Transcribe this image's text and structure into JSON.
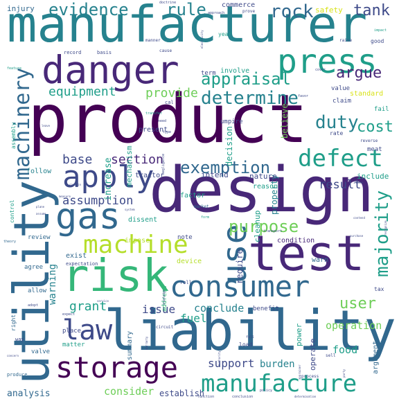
{
  "palette": {
    "dark_purple": "#440154",
    "indigo": "#482878",
    "blue": "#3e4a89",
    "steel_blue": "#31688e",
    "teal_blue": "#26828e",
    "teal": "#1f9e89",
    "green": "#35b779",
    "light_green": "#6ece58",
    "lime": "#b5de2b",
    "yellow": "#d8e219"
  },
  "words": [
    {
      "text": "product",
      "weight": 1.0,
      "color": "dark_purple",
      "orientation": "horizontal"
    },
    {
      "text": "manufacturer",
      "weight": 0.88,
      "color": "teal_blue",
      "orientation": "horizontal"
    },
    {
      "text": "liability",
      "weight": 0.78,
      "color": "steel_blue",
      "orientation": "horizontal"
    },
    {
      "text": "design",
      "weight": 0.82,
      "color": "indigo",
      "orientation": "horizontal"
    },
    {
      "text": "utility",
      "weight": 0.75,
      "color": "steel_blue",
      "orientation": "vertical"
    },
    {
      "text": "test",
      "weight": 0.65,
      "color": "indigo",
      "orientation": "horizontal"
    },
    {
      "text": "risk",
      "weight": 0.62,
      "color": "green",
      "orientation": "horizontal"
    },
    {
      "text": "danger",
      "weight": 0.55,
      "color": "indigo",
      "orientation": "horizontal"
    },
    {
      "text": "consumer",
      "weight": 0.5,
      "color": "steel_blue",
      "orientation": "horizontal"
    },
    {
      "text": "storage",
      "weight": 0.48,
      "color": "dark_purple",
      "orientation": "horizontal"
    },
    {
      "text": "gas",
      "weight": 0.48,
      "color": "steel_blue",
      "orientation": "horizontal"
    },
    {
      "text": "manufacture",
      "weight": 0.42,
      "color": "teal",
      "orientation": "horizontal"
    },
    {
      "text": "use",
      "weight": 0.45,
      "color": "steel_blue",
      "orientation": "vertical"
    },
    {
      "text": "press",
      "weight": 0.42,
      "color": "teal",
      "orientation": "horizontal"
    },
    {
      "text": "apply",
      "weight": 0.4,
      "color": "blue",
      "orientation": "horizontal"
    },
    {
      "text": "machine",
      "weight": 0.38,
      "color": "lime",
      "orientation": "horizontal"
    },
    {
      "text": "law",
      "weight": 0.36,
      "color": "blue",
      "orientation": "horizontal"
    },
    {
      "text": "defect",
      "weight": 0.34,
      "color": "teal",
      "orientation": "horizontal"
    },
    {
      "text": "machinery",
      "weight": 0.3,
      "color": "steel_blue",
      "orientation": "vertical"
    },
    {
      "text": "majority",
      "weight": 0.26,
      "color": "teal",
      "orientation": "vertical"
    },
    {
      "text": "evidence",
      "weight": 0.27,
      "color": "teal_blue",
      "orientation": "horizontal"
    },
    {
      "text": "appraisal",
      "weight": 0.24,
      "color": "teal",
      "orientation": "horizontal"
    },
    {
      "text": "determine",
      "weight": 0.26,
      "color": "teal_blue",
      "orientation": "horizontal"
    },
    {
      "text": "rock",
      "weight": 0.26,
      "color": "steel_blue",
      "orientation": "horizontal"
    },
    {
      "text": "rule",
      "weight": 0.24,
      "color": "teal_blue",
      "orientation": "horizontal"
    },
    {
      "text": "duty",
      "weight": 0.25,
      "color": "teal_blue",
      "orientation": "horizontal"
    },
    {
      "text": "cost",
      "weight": 0.22,
      "color": "teal",
      "orientation": "horizontal"
    },
    {
      "text": "argue",
      "weight": 0.2,
      "color": "indigo",
      "orientation": "horizontal"
    },
    {
      "text": "tank",
      "weight": 0.2,
      "color": "blue",
      "orientation": "horizontal"
    },
    {
      "text": "exemption",
      "weight": 0.23,
      "color": "steel_blue",
      "orientation": "horizontal"
    },
    {
      "text": "purpose",
      "weight": 0.22,
      "color": "light_green",
      "orientation": "horizontal"
    },
    {
      "text": "user",
      "weight": 0.2,
      "color": "light_green",
      "orientation": "horizontal"
    },
    {
      "text": "equipment",
      "weight": 0.18,
      "color": "teal",
      "orientation": "horizontal"
    },
    {
      "text": "provide",
      "weight": 0.18,
      "color": "light_green",
      "orientation": "horizontal"
    },
    {
      "text": "base",
      "weight": 0.18,
      "color": "blue",
      "orientation": "horizontal"
    },
    {
      "text": "section",
      "weight": 0.17,
      "color": "indigo",
      "orientation": "horizontal"
    },
    {
      "text": "assumption",
      "weight": 0.17,
      "color": "blue",
      "orientation": "horizontal"
    },
    {
      "text": "result",
      "weight": 0.17,
      "color": "blue",
      "orientation": "horizontal"
    },
    {
      "text": "grant",
      "weight": 0.18,
      "color": "teal",
      "orientation": "horizontal"
    },
    {
      "text": "support",
      "weight": 0.16,
      "color": "blue",
      "orientation": "horizontal"
    },
    {
      "text": "conclude",
      "weight": 0.15,
      "color": "teal_blue",
      "orientation": "horizontal"
    },
    {
      "text": "fuel",
      "weight": 0.16,
      "color": "teal",
      "orientation": "horizontal"
    },
    {
      "text": "issue",
      "weight": 0.16,
      "color": "blue",
      "orientation": "horizontal"
    },
    {
      "text": "operation",
      "weight": 0.15,
      "color": "light_green",
      "orientation": "horizontal"
    },
    {
      "text": "food",
      "weight": 0.15,
      "color": "teal",
      "orientation": "horizontal"
    },
    {
      "text": "consider",
      "weight": 0.15,
      "color": "light_green",
      "orientation": "horizontal"
    },
    {
      "text": "burden",
      "weight": 0.14,
      "color": "teal_blue",
      "orientation": "horizontal"
    },
    {
      "text": "analysis",
      "weight": 0.13,
      "color": "steel_blue",
      "orientation": "horizontal"
    },
    {
      "text": "establish",
      "weight": 0.12,
      "color": "blue",
      "orientation": "horizontal"
    },
    {
      "text": "warning",
      "weight": 0.14,
      "color": "teal_blue",
      "orientation": "vertical"
    },
    {
      "text": "increase",
      "weight": 0.13,
      "color": "teal",
      "orientation": "vertical"
    },
    {
      "text": "mechanism",
      "weight": 0.11,
      "color": "teal",
      "orientation": "vertical"
    },
    {
      "text": "decision",
      "weight": 0.12,
      "color": "teal",
      "orientation": "vertical"
    },
    {
      "text": "believe",
      "weight": 0.12,
      "color": "light_green",
      "orientation": "vertical"
    },
    {
      "text": "property",
      "weight": 0.12,
      "color": "teal_blue",
      "orientation": "vertical"
    },
    {
      "text": "cleanup",
      "weight": 0.11,
      "color": "teal",
      "orientation": "vertical"
    },
    {
      "text": "require",
      "weight": 0.12,
      "color": "blue",
      "orientation": "vertical"
    },
    {
      "text": "power",
      "weight": 0.11,
      "color": "teal",
      "orientation": "vertical"
    },
    {
      "text": "operate",
      "weight": 0.11,
      "color": "blue",
      "orientation": "vertical"
    },
    {
      "text": "argument",
      "weight": 0.1,
      "color": "steel_blue",
      "orientation": "vertical"
    },
    {
      "text": "summary",
      "weight": 0.1,
      "color": "steel_blue",
      "orientation": "vertical"
    },
    {
      "text": "address",
      "weight": 0.09,
      "color": "green",
      "orientation": "vertical"
    },
    {
      "text": "standard",
      "weight": 0.1,
      "color": "yellow",
      "orientation": "horizontal"
    },
    {
      "text": "safety",
      "weight": 0.11,
      "color": "yellow",
      "orientation": "horizontal"
    },
    {
      "text": "injury",
      "weight": 0.11,
      "color": "steel_blue",
      "orientation": "horizontal"
    },
    {
      "text": "commerce",
      "weight": 0.1,
      "color": "blue",
      "orientation": "horizontal"
    },
    {
      "text": "tractor",
      "weight": 0.1,
      "color": "blue",
      "orientation": "horizontal"
    },
    {
      "text": "factor",
      "weight": 0.1,
      "color": "teal",
      "orientation": "horizontal"
    },
    {
      "text": "intend",
      "weight": 0.11,
      "color": "blue",
      "orientation": "horizontal"
    },
    {
      "text": "nature",
      "weight": 0.11,
      "color": "blue",
      "orientation": "horizontal"
    },
    {
      "text": "include",
      "weight": 0.11,
      "color": "teal",
      "orientation": "horizontal"
    },
    {
      "text": "reason",
      "weight": 0.1,
      "color": "teal",
      "orientation": "horizontal"
    },
    {
      "text": "condition",
      "weight": 0.1,
      "color": "indigo",
      "orientation": "horizontal"
    },
    {
      "text": "warn",
      "weight": 0.1,
      "color": "steel_blue",
      "orientation": "horizontal"
    },
    {
      "text": "impose",
      "weight": 0.1,
      "color": "lime",
      "orientation": "horizontal"
    },
    {
      "text": "device",
      "weight": 0.1,
      "color": "lime",
      "orientation": "horizontal"
    },
    {
      "text": "exist",
      "weight": 0.1,
      "color": "steel_blue",
      "orientation": "horizontal"
    },
    {
      "text": "dissent",
      "weight": 0.1,
      "color": "teal",
      "orientation": "horizontal"
    },
    {
      "text": "note",
      "weight": 0.09,
      "color": "blue",
      "orientation": "horizontal"
    },
    {
      "text": "review",
      "weight": 0.09,
      "color": "steel_blue",
      "orientation": "horizontal"
    },
    {
      "text": "follow",
      "weight": 0.1,
      "color": "teal_blue",
      "orientation": "horizontal"
    },
    {
      "text": "present",
      "weight": 0.1,
      "color": "blue",
      "orientation": "horizontal"
    },
    {
      "text": "involve",
      "weight": 0.1,
      "color": "teal",
      "orientation": "horizontal"
    },
    {
      "text": "term",
      "weight": 0.09,
      "color": "blue",
      "orientation": "horizontal"
    },
    {
      "text": "value",
      "weight": 0.09,
      "color": "blue",
      "orientation": "horizontal"
    },
    {
      "text": "claim",
      "weight": 0.09,
      "color": "blue",
      "orientation": "horizontal"
    },
    {
      "text": "fail",
      "weight": 0.09,
      "color": "teal",
      "orientation": "horizontal"
    },
    {
      "text": "meat",
      "weight": 0.09,
      "color": "blue",
      "orientation": "horizontal"
    },
    {
      "text": "umpire",
      "weight": 0.09,
      "color": "blue",
      "orientation": "horizontal"
    },
    {
      "text": "rate",
      "weight": 0.08,
      "color": "blue",
      "orientation": "horizontal"
    },
    {
      "text": "year",
      "weight": 0.08,
      "color": "teal",
      "orientation": "horizontal"
    },
    {
      "text": "good",
      "weight": 0.08,
      "color": "blue",
      "orientation": "horizontal"
    },
    {
      "text": "place",
      "weight": 0.09,
      "color": "blue",
      "orientation": "horizontal"
    },
    {
      "text": "allow",
      "weight": 0.09,
      "color": "steel_blue",
      "orientation": "horizontal"
    },
    {
      "text": "agree",
      "weight": 0.09,
      "color": "steel_blue",
      "orientation": "horizontal"
    },
    {
      "text": "matter",
      "weight": 0.09,
      "color": "teal",
      "orientation": "horizontal"
    },
    {
      "text": "valve",
      "weight": 0.09,
      "color": "steel_blue",
      "orientation": "horizontal"
    },
    {
      "text": "benefit",
      "weight": 0.09,
      "color": "blue",
      "orientation": "horizontal"
    },
    {
      "text": "load",
      "weight": 0.08,
      "color": "blue",
      "orientation": "horizontal"
    },
    {
      "text": "tax",
      "weight": 0.08,
      "color": "blue",
      "orientation": "horizontal"
    },
    {
      "text": "produce",
      "weight": 0.07,
      "color": "steel_blue",
      "orientation": "horizontal"
    },
    {
      "text": "control",
      "weight": 0.08,
      "color": "teal",
      "orientation": "vertical"
    },
    {
      "text": "assembly",
      "weight": 0.08,
      "color": "teal",
      "orientation": "vertical"
    },
    {
      "text": "right",
      "weight": 0.08,
      "color": "steel_blue",
      "orientation": "vertical"
    },
    {
      "text": "way",
      "weight": 0.07,
      "color": "blue",
      "orientation": "horizontal"
    },
    {
      "text": "record",
      "weight": 0.07,
      "color": "blue",
      "orientation": "horizontal"
    },
    {
      "text": "basis",
      "weight": 0.07,
      "color": "blue",
      "orientation": "horizontal"
    },
    {
      "text": "expectation",
      "weight": 0.07,
      "color": "blue",
      "orientation": "horizontal"
    },
    {
      "text": "market",
      "weight": 0.06,
      "color": "steel_blue",
      "orientation": "horizontal"
    },
    {
      "text": "roll",
      "weight": 0.07,
      "color": "blue",
      "orientation": "horizontal"
    },
    {
      "text": "circuit",
      "weight": 0.06,
      "color": "blue",
      "orientation": "horizontal"
    },
    {
      "text": "sell",
      "weight": 0.06,
      "color": "blue",
      "orientation": "horizontal"
    },
    {
      "text": "fall",
      "weight": 0.05,
      "color": "blue",
      "orientation": "horizontal"
    },
    {
      "text": "process",
      "weight": 0.06,
      "color": "blue",
      "orientation": "horizontal"
    },
    {
      "text": "policy",
      "weight": 0.05,
      "color": "blue",
      "orientation": "horizontal"
    },
    {
      "text": "function",
      "weight": 0.05,
      "color": "blue",
      "orientation": "horizontal"
    },
    {
      "text": "conclusion",
      "weight": 0.05,
      "color": "blue",
      "orientation": "horizontal"
    },
    {
      "text": "determination",
      "weight": 0.04,
      "color": "blue",
      "orientation": "horizontal"
    },
    {
      "text": "manner",
      "weight": 0.06,
      "color": "blue",
      "orientation": "horizontal"
    },
    {
      "text": "cause",
      "weight": 0.06,
      "color": "blue",
      "orientation": "horizontal"
    },
    {
      "text": "doctrine",
      "weight": 0.05,
      "color": "blue",
      "orientation": "horizontal"
    },
    {
      "text": "approach",
      "weight": 0.05,
      "color": "blue",
      "orientation": "horizontal"
    },
    {
      "text": "prove",
      "weight": 0.06,
      "color": "blue",
      "orientation": "horizontal"
    },
    {
      "text": "raise",
      "weight": 0.06,
      "color": "blue",
      "orientation": "horizontal"
    },
    {
      "text": "impact",
      "weight": 0.05,
      "color": "teal",
      "orientation": "horizontal"
    },
    {
      "text": "cover",
      "weight": 0.05,
      "color": "blue",
      "orientation": "horizontal"
    },
    {
      "text": "favor",
      "weight": 0.05,
      "color": "blue",
      "orientation": "horizontal"
    },
    {
      "text": "feature",
      "weight": 0.05,
      "color": "teal",
      "orientation": "horizontal"
    },
    {
      "text": "transfer",
      "weight": 0.05,
      "color": "teal",
      "orientation": "horizontal"
    },
    {
      "text": "cal",
      "weight": 0.07,
      "color": "blue",
      "orientation": "horizontal"
    },
    {
      "text": "need",
      "weight": 0.05,
      "color": "blue",
      "orientation": "horizontal"
    },
    {
      "text": "type",
      "weight": 0.05,
      "color": "blue",
      "orientation": "horizontal"
    },
    {
      "text": "form",
      "weight": 0.05,
      "color": "teal",
      "orientation": "horizontal"
    },
    {
      "text": "leave",
      "weight": 0.04,
      "color": "blue",
      "orientation": "horizontal"
    },
    {
      "text": "contain",
      "weight": 0.04,
      "color": "blue",
      "orientation": "horizontal"
    },
    {
      "text": "measure",
      "weight": 0.04,
      "color": "blue",
      "orientation": "horizontal"
    },
    {
      "text": "plane",
      "weight": 0.04,
      "color": "blue",
      "orientation": "horizontal"
    },
    {
      "text": "assume",
      "weight": 0.04,
      "color": "blue",
      "orientation": "horizontal"
    },
    {
      "text": "theory",
      "weight": 0.05,
      "color": "steel_blue",
      "orientation": "horizontal"
    },
    {
      "text": "adopt",
      "weight": 0.05,
      "color": "blue",
      "orientation": "horizontal"
    },
    {
      "text": "service",
      "weight": 0.04,
      "color": "blue",
      "orientation": "horizontal"
    },
    {
      "text": "expect",
      "weight": 0.05,
      "color": "blue",
      "orientation": "horizontal"
    },
    {
      "text": "concern",
      "weight": 0.04,
      "color": "blue",
      "orientation": "horizontal"
    },
    {
      "text": "system",
      "weight": 0.04,
      "color": "blue",
      "orientation": "horizontal"
    },
    {
      "text": "transport",
      "weight": 0.05,
      "color": "blue",
      "orientation": "horizontal"
    },
    {
      "text": "contend",
      "weight": 0.04,
      "color": "blue",
      "orientation": "horizontal"
    },
    {
      "text": "purchase",
      "weight": 0.04,
      "color": "blue",
      "orientation": "horizontal"
    },
    {
      "text": "income",
      "weight": 0.04,
      "color": "blue",
      "orientation": "horizontal"
    },
    {
      "text": "reverse",
      "weight": 0.06,
      "color": "blue",
      "orientation": "horizontal"
    },
    {
      "text": "negligence",
      "weight": 0.05,
      "color": "blue",
      "orientation": "vertical"
    },
    {
      "text": "electricity",
      "weight": 0.04,
      "color": "blue",
      "orientation": "vertical"
    },
    {
      "text": "knowledge",
      "weight": 0.04,
      "color": "blue",
      "orientation": "vertical"
    },
    {
      "text": "recognize",
      "weight": 0.04,
      "color": "blue",
      "orientation": "vertical"
    },
    {
      "text": "warranty",
      "weight": 0.04,
      "color": "blue",
      "orientation": "vertical"
    },
    {
      "text": "authority",
      "weight": 0.04,
      "color": "blue",
      "orientation": "vertical"
    },
    {
      "text": "appraiser",
      "weight": 0.04,
      "color": "blue",
      "orientation": "vertical"
    },
    {
      "text": "party",
      "weight": 0.04,
      "color": "blue",
      "orientation": "vertical"
    }
  ]
}
